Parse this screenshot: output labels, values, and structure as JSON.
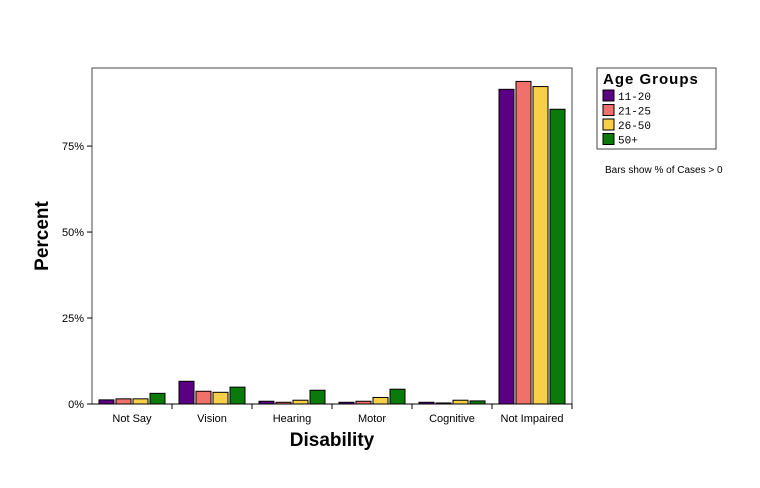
{
  "chart_data": {
    "type": "bar",
    "xlabel": "Disability",
    "ylabel": "Percent",
    "categories": [
      "Not Say",
      "Vision",
      "Hearing",
      "Motor",
      "Cognitive",
      "Not Impaired"
    ],
    "yticks": [
      0,
      25,
      50,
      75
    ],
    "ytick_labels": [
      "0%",
      "25%",
      "50%",
      "75%"
    ],
    "ylim": [
      0,
      97.7
    ],
    "grid": false,
    "legend": {
      "title": "Age Groups",
      "placement": "right"
    },
    "note": "Bars show % of Cases > 0",
    "series": [
      {
        "name": "11-20",
        "color": "#5a0082",
        "values": [
          1.2,
          6.6,
          0.8,
          0.5,
          0.5,
          91.5
        ]
      },
      {
        "name": "21-25",
        "color": "#f0706c",
        "values": [
          1.5,
          3.7,
          0.5,
          0.8,
          0.3,
          93.8
        ]
      },
      {
        "name": "26-50",
        "color": "#f8d048",
        "values": [
          1.5,
          3.4,
          1.1,
          1.9,
          1.1,
          92.3
        ]
      },
      {
        "name": "50+",
        "color": "#0a7a0a",
        "values": [
          3.1,
          4.9,
          4.0,
          4.3,
          0.9,
          85.7
        ]
      }
    ]
  }
}
